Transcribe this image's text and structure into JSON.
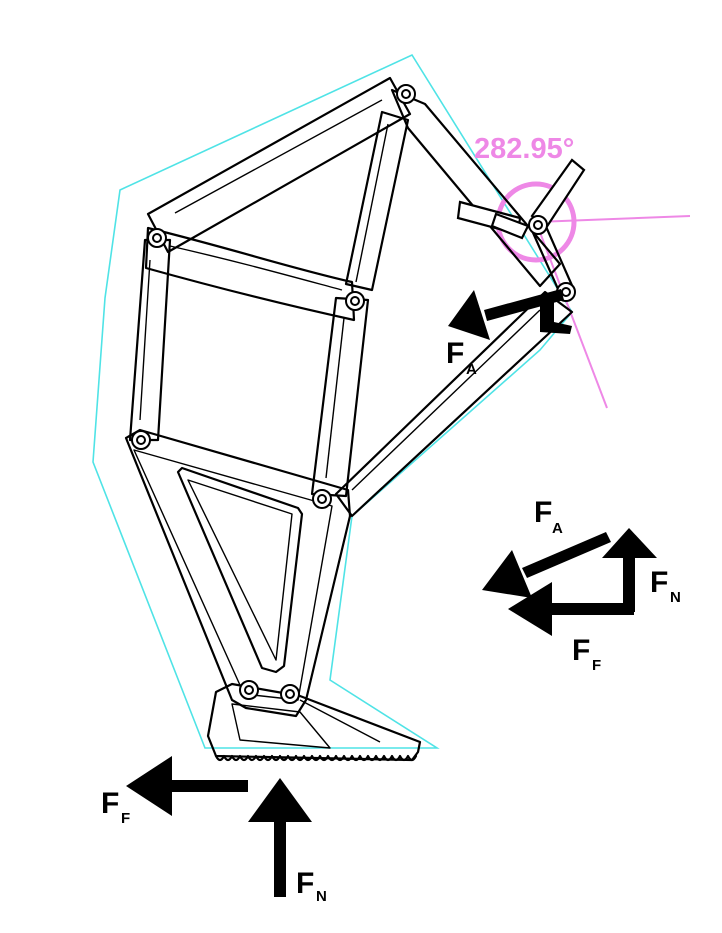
{
  "colors": {
    "outline": "#4fe3e6",
    "angle": "#ee88e6",
    "line": "#000000",
    "arrow": "#000000"
  },
  "angle": {
    "label": "282.95°"
  },
  "forces": {
    "actuator": {
      "main": "F",
      "sub": "A"
    },
    "normal": {
      "main": "F",
      "sub": "N"
    },
    "friction": {
      "main": "F",
      "sub": "F"
    }
  },
  "vector_diagram": {
    "actuator": {
      "main": "F",
      "sub": "A"
    },
    "normal": {
      "main": "F",
      "sub": "N"
    },
    "friction": {
      "main": "F",
      "sub": "F"
    }
  }
}
